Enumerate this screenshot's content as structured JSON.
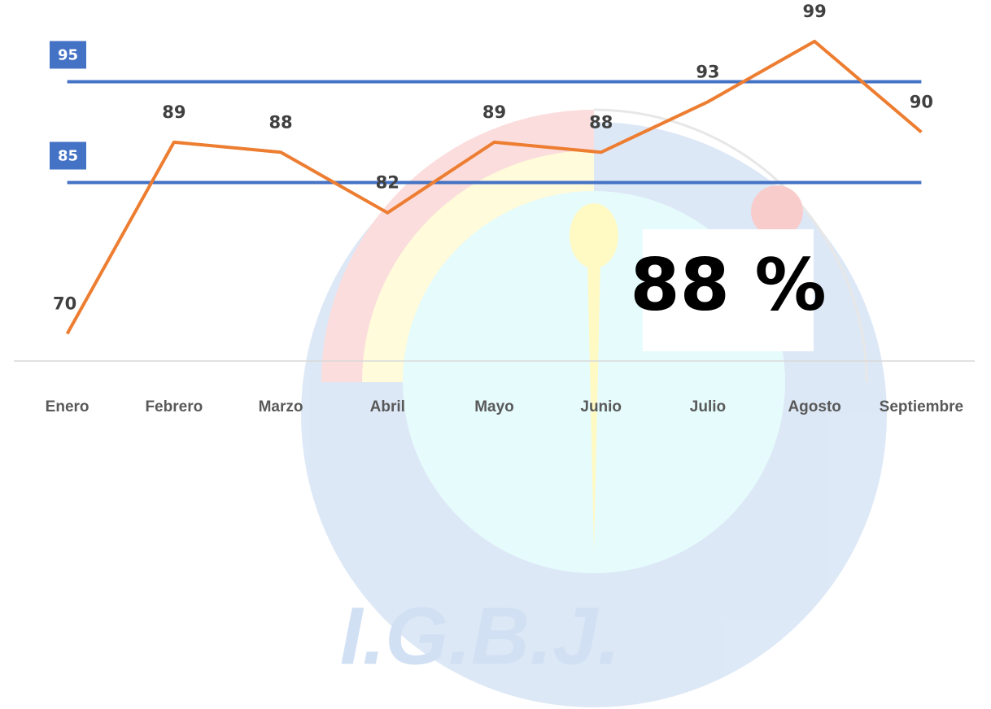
{
  "chart_data": {
    "type": "line",
    "categories": [
      "Enero",
      "Febrero",
      "Marzo",
      "Abril",
      "Mayo",
      "Junio",
      "Julio",
      "Agosto",
      "Septiembre"
    ],
    "series": [
      {
        "color": "#ed7d31",
        "values": [
          70,
          89,
          88,
          82,
          89,
          88,
          93,
          99,
          90
        ]
      }
    ],
    "ylim": [
      67.3,
      103.1
    ],
    "reference_lines": [
      {
        "value": 95,
        "color": "#4472c4"
      },
      {
        "value": 85,
        "color": "#4472c4"
      }
    ],
    "annotation": "88 %",
    "watermark": "I.G.B.J."
  }
}
